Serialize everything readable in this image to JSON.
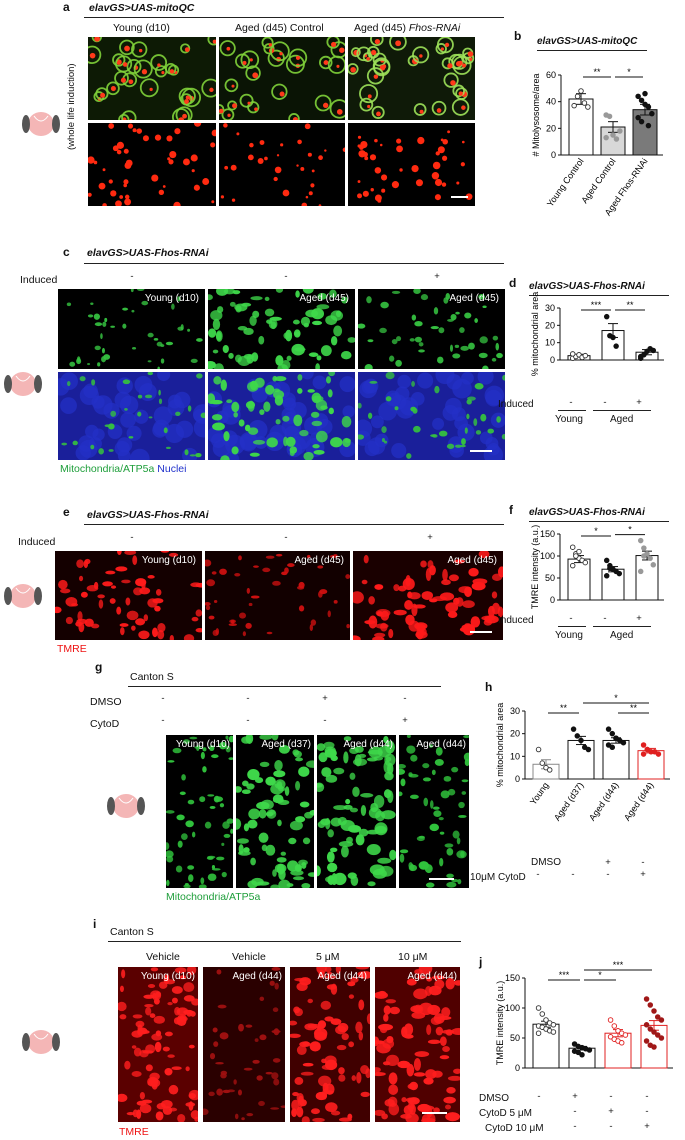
{
  "panel_a": {
    "label": "a",
    "genotype": "elavGS>UAS-mitoQC",
    "side_label": "(whole life induction)",
    "columns": [
      "Young (d10)",
      "Aged (d45) Control",
      "Aged (d45) Fhos-RNAi"
    ],
    "col3_plain": "Aged (d45) ",
    "col3_ital": "Fhos-RNAi"
  },
  "panel_b": {
    "label": "b",
    "genotype": "elavGS>UAS-mitoQC"
  },
  "panel_c": {
    "label": "c",
    "genotype": "elavGS>UAS-Fhos-RNAi",
    "row_label": "Induced",
    "induced": [
      "-",
      "-",
      "+"
    ],
    "images": [
      "Young (d10)",
      "Aged (d45)",
      "Aged (d45)"
    ],
    "legend_a": "Mitochondria/ATP5a",
    "legend_b": "Nuclei"
  },
  "panel_d": {
    "label": "d",
    "genotype": "elavGS>UAS-Fhos-RNAi",
    "row_label": "Induced",
    "induced": [
      "-",
      "-",
      "+"
    ],
    "groups": [
      "Young",
      "Aged"
    ]
  },
  "panel_e": {
    "label": "e",
    "genotype": "elavGS>UAS-Fhos-RNAi",
    "row_label": "Induced",
    "induced": [
      "-",
      "-",
      "+"
    ],
    "images": [
      "Young (d10)",
      "Aged (d45)",
      "Aged (d45)"
    ],
    "legend": "TMRE"
  },
  "panel_f": {
    "label": "f",
    "genotype": "elavGS>UAS-Fhos-RNAi",
    "row_label": "Induced",
    "induced": [
      "-",
      "-",
      "+"
    ],
    "groups": [
      "Young",
      "Aged"
    ]
  },
  "panel_g": {
    "label": "g",
    "strain": "Canton S",
    "row1": "DMSO",
    "row1_vals": [
      "-",
      "-",
      "+",
      "-"
    ],
    "row2": "CytoD",
    "row2_vals": [
      "-",
      "-",
      "-",
      "+"
    ],
    "images": [
      "Young (d10)",
      "Aged (d37)",
      "Aged (d44)",
      "Aged (d44)"
    ],
    "legend": "Mitochondria/ATP5a"
  },
  "panel_h": {
    "label": "h",
    "row1": "DMSO",
    "row1_vals": [
      "-",
      "-",
      "+",
      "-"
    ],
    "row2": "10μM CytoD",
    "row2_vals": [
      "-",
      "-",
      "-",
      "+"
    ]
  },
  "panel_i": {
    "label": "i",
    "strain": "Canton S",
    "treatments": [
      "Vehicle",
      "Vehicle",
      "5 μM",
      "10 μM"
    ],
    "images": [
      "Young (d10)",
      "Aged (d44)",
      "Aged (d44)",
      "Aged (d44)"
    ],
    "legend": "TMRE"
  },
  "panel_j": {
    "label": "j",
    "row1": "DMSO",
    "row1_vals": [
      "-",
      "+",
      "-",
      "-"
    ],
    "row2": "CytoD 5 μM",
    "row2_vals": [
      "-",
      "-",
      "+",
      "-"
    ],
    "row3": "CytoD 10 μM",
    "row3_vals": [
      "-",
      "-",
      "-",
      "+"
    ]
  },
  "chart_data": [
    {
      "id": "b",
      "type": "bar",
      "title": "elavGS>UAS-mitoQC",
      "ylabel": "# Mitolysosome/area",
      "ylim": [
        0,
        60
      ],
      "yticks": [
        0,
        20,
        40,
        60
      ],
      "categories": [
        "Young Control",
        "Aged Control",
        "Aged Fhos-RNAi"
      ],
      "values": [
        42,
        21,
        34
      ],
      "errors": [
        4,
        4,
        4
      ],
      "bar_colors": [
        "#ffffff",
        "#d8d8d8",
        "#7a7a7a"
      ],
      "points": [
        [
          37,
          44,
          48,
          39,
          36
        ],
        [
          30,
          29,
          15,
          12,
          18,
          13
        ],
        [
          44,
          41,
          38,
          36,
          31,
          28,
          25,
          46,
          22
        ]
      ],
      "point_styles": [
        "open",
        "grey",
        "black"
      ],
      "sig": [
        {
          "from": 0,
          "to": 1,
          "label": "**"
        },
        {
          "from": 1,
          "to": 2,
          "label": "*"
        }
      ]
    },
    {
      "id": "d",
      "type": "bar",
      "ylabel": "% mitochondrial area",
      "ylim": [
        0,
        30
      ],
      "yticks": [
        0,
        10,
        20,
        30
      ],
      "categories": [
        "-",
        "-",
        "+"
      ],
      "values": [
        2.5,
        17,
        4.5
      ],
      "errors": [
        0.8,
        4,
        1.5
      ],
      "bar_colors": [
        "#ffffff",
        "#ffffff",
        "#ffffff"
      ],
      "points": [
        [
          1,
          2,
          3,
          1.5,
          2.5,
          3.5
        ],
        [
          25,
          14,
          13,
          8
        ],
        [
          1,
          3,
          5,
          6.5,
          5.5,
          2
        ]
      ],
      "point_styles": [
        "open",
        "black",
        "black"
      ],
      "sig": [
        {
          "from": 0,
          "to": 1,
          "label": "***"
        },
        {
          "from": 1,
          "to": 2,
          "label": "**"
        }
      ]
    },
    {
      "id": "f",
      "type": "bar",
      "ylabel": "TMRE intensity (a.u.)",
      "ylim": [
        0,
        150
      ],
      "yticks": [
        0,
        50,
        100,
        150
      ],
      "categories": [
        "-",
        "-",
        "+"
      ],
      "values": [
        93,
        70,
        101
      ],
      "errors": [
        8,
        6,
        10
      ],
      "bar_colors": [
        "#ffffff",
        "#ffffff",
        "#ffffff"
      ],
      "points": [
        [
          120,
          105,
          95,
          90,
          85,
          78,
          100,
          110
        ],
        [
          90,
          78,
          70,
          65,
          60,
          55,
          72
        ],
        [
          135,
          118,
          105,
          95,
          80,
          65,
          100
        ]
      ],
      "point_styles": [
        "open",
        "black",
        "grey"
      ],
      "sig": [
        {
          "from": 0,
          "to": 1,
          "label": "*"
        },
        {
          "from": 1,
          "to": 2,
          "label": "*"
        }
      ]
    },
    {
      "id": "h",
      "type": "bar",
      "ylabel": "% mitochondrial area",
      "ylim": [
        0,
        30
      ],
      "yticks": [
        0,
        10,
        20,
        30
      ],
      "categories": [
        "Young",
        "Aged (d37)",
        "Aged (d44)",
        "Aged (d44)"
      ],
      "values": [
        6.5,
        17,
        17,
        12.5
      ],
      "errors": [
        2,
        1.8,
        1.2,
        1
      ],
      "bar_colors": [
        "#ffffff",
        "#ffffff",
        "#ffffff",
        "#ffffff"
      ],
      "bar_strokes": [
        "#888888",
        "#111111",
        "#111111",
        "#e02020"
      ],
      "points": [
        [
          13,
          7,
          5,
          4
        ],
        [
          22,
          19,
          17,
          14,
          13
        ],
        [
          22,
          20,
          18,
          17,
          16,
          15,
          14,
          18
        ],
        [
          15,
          13,
          12,
          12,
          11,
          11,
          13
        ]
      ],
      "point_styles": [
        "open",
        "black",
        "black",
        "red"
      ],
      "sig": [
        {
          "from": 0,
          "to": 1,
          "label": "**"
        },
        {
          "from": 1,
          "to": 3,
          "label": "*"
        },
        {
          "from": 2,
          "to": 3,
          "label": "**"
        }
      ]
    },
    {
      "id": "j",
      "type": "bar",
      "ylabel": "TMRE intensity (a.u.)",
      "ylim": [
        0,
        150
      ],
      "yticks": [
        0,
        50,
        100,
        150
      ],
      "categories": [
        "Young",
        "Aged",
        "Aged",
        "Aged"
      ],
      "values": [
        73,
        33,
        58,
        71
      ],
      "errors": [
        5,
        3,
        6,
        8
      ],
      "bar_colors": [
        "#ffffff",
        "#ffffff",
        "#ffffff",
        "#ffffff"
      ],
      "bar_strokes": [
        "#111111",
        "#111111",
        "#e02020",
        "#e02020"
      ],
      "points": [
        [
          100,
          90,
          80,
          75,
          72,
          70,
          68,
          65,
          62,
          60,
          58
        ],
        [
          40,
          36,
          34,
          32,
          30,
          28,
          26,
          22
        ],
        [
          80,
          70,
          62,
          58,
          55,
          52,
          48,
          45,
          42
        ],
        [
          115,
          105,
          95,
          85,
          80,
          72,
          65,
          60,
          55,
          50,
          45,
          38,
          35
        ]
      ],
      "point_styles": [
        "open",
        "black",
        "red-open",
        "darkred"
      ],
      "sig": [
        {
          "from": 0,
          "to": 1,
          "label": "***"
        },
        {
          "from": 1,
          "to": 3,
          "label": "***"
        },
        {
          "from": 1,
          "to": 2,
          "label": "*"
        }
      ]
    }
  ]
}
